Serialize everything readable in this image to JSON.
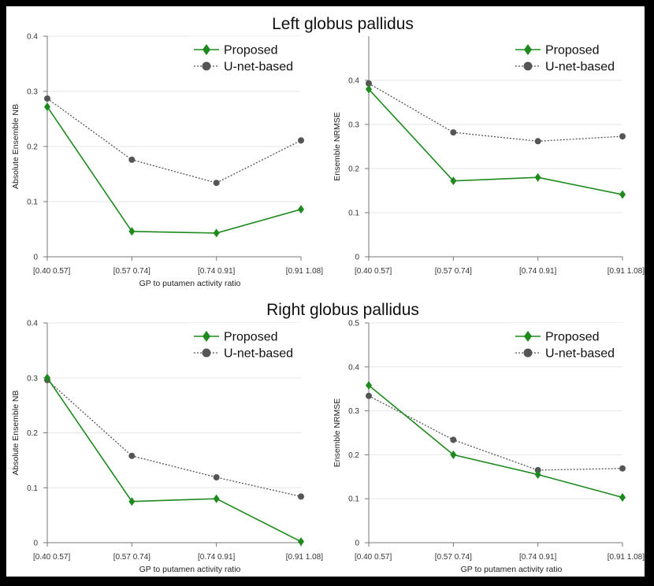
{
  "section_titles": [
    "Left globus pallidus",
    "Right globus pallidus"
  ],
  "series_colors": {
    "proposed": "#1e8a1e",
    "unet": "#555555"
  },
  "chart_data": [
    {
      "type": "line",
      "section": "Left globus pallidus",
      "categories": [
        "[0.40 0.57]",
        "[0.57 0.74]",
        "[0.74 0.91]",
        "[0.91 1.08]"
      ],
      "xlabel": "GP to putamen activity ratio",
      "ylabel": "Absolute Ensemble NB",
      "ylim": [
        0,
        0.4
      ],
      "yticks": [
        0,
        0.1,
        0.2,
        0.3,
        0.4
      ],
      "ytick_labels": [
        "0",
        "0.1",
        "0.2",
        "0.3",
        "0.4"
      ],
      "legend": "top-right",
      "series": [
        {
          "name": "Proposed",
          "values": [
            0.272,
            0.046,
            0.043,
            0.086
          ]
        },
        {
          "name": "U-net-based",
          "values": [
            0.287,
            0.176,
            0.134,
            0.211
          ]
        }
      ]
    },
    {
      "type": "line",
      "section": "Left globus pallidus",
      "categories": [
        "[0.40 0.57]",
        "[0.57 0.74]",
        "[0.74 0.91]",
        "[0.91 1.08]"
      ],
      "xlabel": "",
      "ylabel": "Ensemble NRMSE",
      "ylim": [
        0,
        0.5
      ],
      "yticks": [
        0,
        0.1,
        0.2,
        0.3,
        0.4
      ],
      "ytick_labels": [
        "0",
        "0.1",
        "0.2",
        "0.3",
        "0.4"
      ],
      "legend": "top-right",
      "series": [
        {
          "name": "Proposed",
          "values": [
            0.38,
            0.172,
            0.18,
            0.141
          ]
        },
        {
          "name": "U-net-based",
          "values": [
            0.393,
            0.282,
            0.262,
            0.273
          ]
        }
      ]
    },
    {
      "type": "line",
      "section": "Right globus pallidus",
      "categories": [
        "[0.40 0.57]",
        "[0.57 0.74]",
        "[0.74 0.91]",
        "[0.91 1.08]"
      ],
      "xlabel": "GP to putamen activity ratio",
      "ylabel": "Absolute Ensemble NB",
      "ylim": [
        0,
        0.4
      ],
      "yticks": [
        0,
        0.1,
        0.2,
        0.3,
        0.4
      ],
      "ytick_labels": [
        "0",
        "0.1",
        "0.2",
        "0.3",
        "0.4"
      ],
      "legend": "top-right",
      "series": [
        {
          "name": "Proposed",
          "values": [
            0.3,
            0.075,
            0.08,
            0.002
          ]
        },
        {
          "name": "U-net-based",
          "values": [
            0.296,
            0.158,
            0.119,
            0.084
          ]
        }
      ]
    },
    {
      "type": "line",
      "section": "Right globus pallidus",
      "categories": [
        "[0.40 0.57]",
        "[0.57 0.74]",
        "[0.74 0.91]",
        "[0.91 1.08]"
      ],
      "xlabel": "GP to putamen activity ratio",
      "ylabel": "Ensemble NRMSE",
      "ylim": [
        0,
        0.5
      ],
      "yticks": [
        0,
        0.1,
        0.2,
        0.3,
        0.4,
        0.5
      ],
      "ytick_labels": [
        "0",
        "0.1",
        "0.2",
        "0.3",
        "0.4",
        "0.5"
      ],
      "legend": "top-right",
      "series": [
        {
          "name": "Proposed",
          "values": [
            0.358,
            0.2,
            0.155,
            0.103
          ]
        },
        {
          "name": "U-net-based",
          "values": [
            0.334,
            0.234,
            0.165,
            0.169
          ]
        }
      ]
    }
  ]
}
